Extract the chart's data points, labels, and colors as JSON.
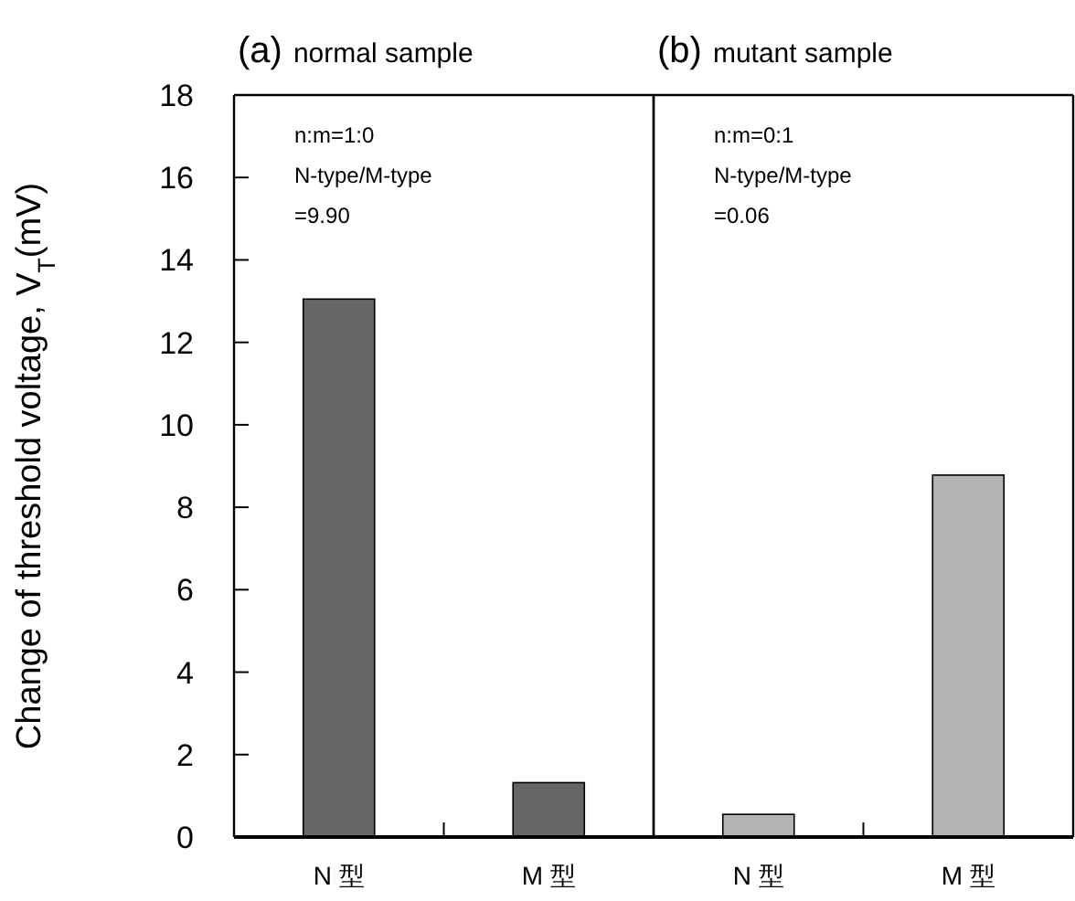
{
  "chart_data": [
    {
      "type": "bar",
      "title": "(a) normal sample",
      "ylabel": "Change of threshold voltage,  V$_{T}$(mV)",
      "categories": [
        "N 型",
        "M 型"
      ],
      "series": [
        {
          "color": "#666666",
          "values": [
            13.05,
            1.32
          ]
        }
      ],
      "ylim": [
        0,
        18
      ],
      "yticks": [
        0,
        2,
        4,
        6,
        8,
        10,
        12,
        14,
        16,
        18
      ],
      "annotations": [
        "n:m=1:0",
        "N-type/M-type",
        "=9.90"
      ]
    },
    {
      "type": "bar",
      "title": "(b) mutant sample",
      "categories": [
        "N 型",
        "M 型"
      ],
      "series": [
        {
          "color": "#b3b3b3",
          "values": [
            0.55,
            8.78
          ]
        }
      ],
      "ylim": [
        0,
        18
      ],
      "tick_labels": "x",
      "annotations": [
        "n:m=0:1",
        "N-type/M-type",
        "=0.06"
      ]
    }
  ]
}
